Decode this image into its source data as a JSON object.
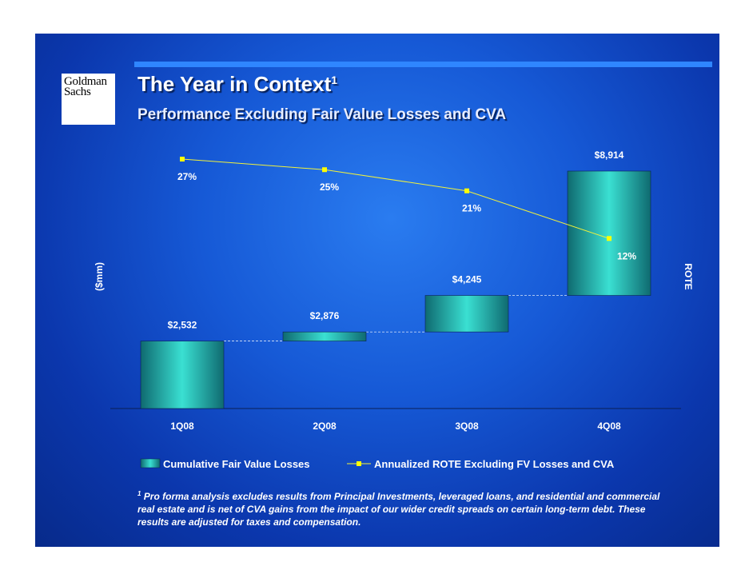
{
  "slide": {
    "logo_line1": "Goldman",
    "logo_line2": "Sachs",
    "title": "The Year in Context",
    "title_footnote_mark": "1",
    "subtitle": "Performance Excluding Fair Value Losses and CVA",
    "footnote_mark": "1",
    "footnote_lines": [
      "Pro forma analysis excludes results from Principal Investments, leveraged loans, and residential and commercial",
      "real estate and is net of CVA gains from the impact of our wider credit spreads on certain long-term debt.  These",
      "results are adjusted for taxes and compensation."
    ]
  },
  "colors": {
    "background": "#1659d6",
    "accent_bar": "#2f86ff",
    "bar_fill_center": "#3ae0d2",
    "bar_fill_edge": "#0f6a70",
    "line": "#f2f23a",
    "marker": "#ffff00",
    "connector": "#ffffff"
  },
  "chart_data": {
    "type": "waterfall",
    "categories": [
      "1Q08",
      "2Q08",
      "3Q08",
      "4Q08"
    ],
    "ylabel_left": "($mm)",
    "ylabel_right": "ROTE",
    "series": [
      {
        "name": "Cumulative Fair Value Losses",
        "kind": "bar",
        "values": [
          2532,
          2876,
          4245,
          8914
        ],
        "labels": [
          "$2,532",
          "$2,876",
          "$4,245",
          "$8,914"
        ]
      },
      {
        "name": "Annualized ROTE Excluding FV Losses and CVA",
        "kind": "line",
        "values": [
          27,
          25,
          21,
          12
        ],
        "labels": [
          "27%",
          "25%",
          "21%",
          "12%"
        ]
      }
    ]
  }
}
